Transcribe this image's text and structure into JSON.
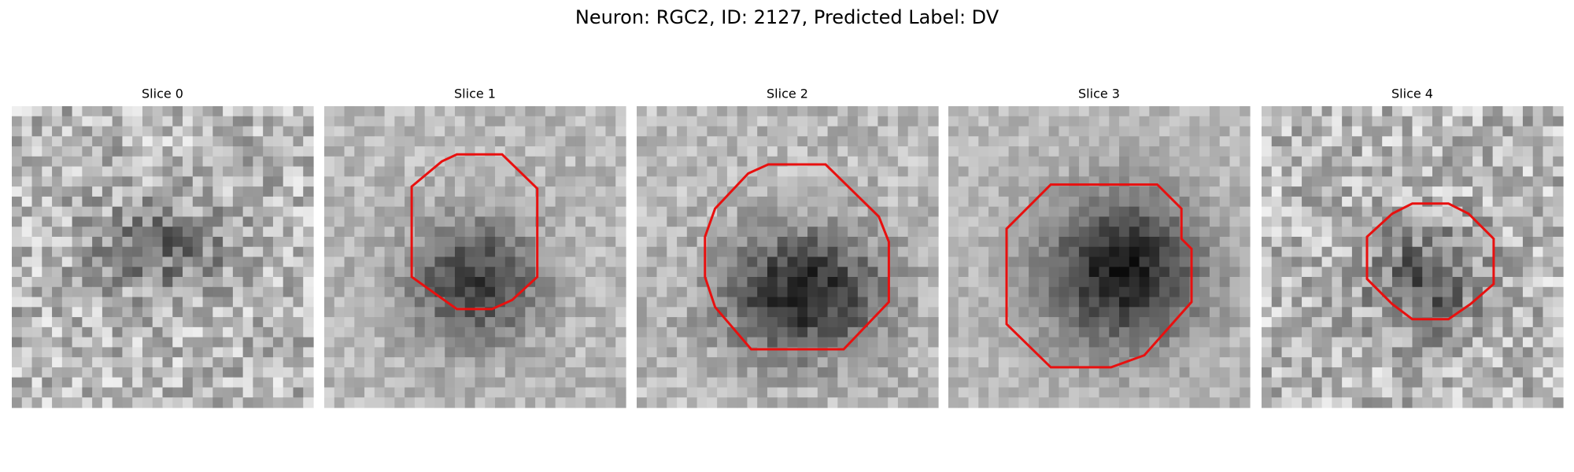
{
  "title": "Neuron: RGC2, ID: 2127, Predicted Label: DV",
  "panels": [
    {
      "title": "Slice 0"
    },
    {
      "title": "Slice 1"
    },
    {
      "title": "Slice 2"
    },
    {
      "title": "Slice 3"
    },
    {
      "title": "Slice 4"
    }
  ]
}
